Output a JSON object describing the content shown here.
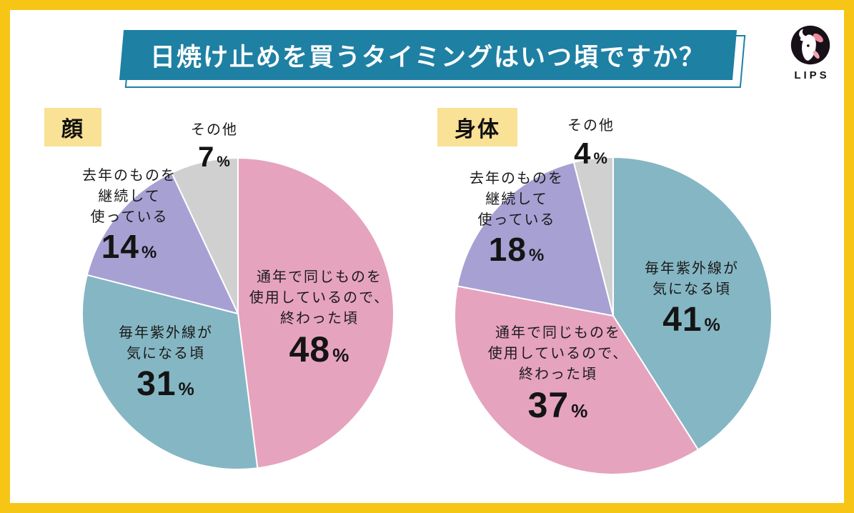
{
  "page": {
    "title": "日焼け止めを買うタイミングはいつ頃ですか？",
    "brand": {
      "logo_icon": "lips-deer-icon",
      "logo_text": "LIPS"
    }
  },
  "colors": {
    "frame_yellow": "#F7C516",
    "title_teal": "#1E80A3",
    "label_yellow_bg": "#F9E195",
    "slice_pink": "#E6A3BD",
    "slice_teal": "#85B6C3",
    "slice_purple": "#A7A0D3",
    "slice_gray": "#D1D0D1",
    "slice_border": "#FFFFFF",
    "text_black": "#141414",
    "title_text_white": "#FFFFFF"
  },
  "chart_data": [
    {
      "type": "pie",
      "title": "顔",
      "unit": "%",
      "start_angle_deg": 0,
      "direction": "clockwise",
      "legend": "none",
      "label_position": "on-slice",
      "slices": [
        {
          "label": "通年で同じものを使用しているので、終わった頃",
          "label_lines": [
            "通年で同じものを",
            "使用しているので、",
            "終わった頃"
          ],
          "value": 48,
          "color": "#E6A3BD"
        },
        {
          "label": "毎年紫外線が気になる頃",
          "label_lines": [
            "毎年紫外線が",
            "気になる頃"
          ],
          "value": 31,
          "color": "#85B6C3"
        },
        {
          "label": "去年のものを継続して使っている",
          "label_lines": [
            "去年のものを",
            "継続して",
            "使っている"
          ],
          "value": 14,
          "color": "#A7A0D3"
        },
        {
          "label": "その他",
          "label_lines": [
            "その他"
          ],
          "value": 7,
          "color": "#D1D0D1"
        }
      ]
    },
    {
      "type": "pie",
      "title": "身体",
      "unit": "%",
      "start_angle_deg": 0,
      "direction": "clockwise",
      "legend": "none",
      "label_position": "on-slice",
      "slices": [
        {
          "label": "毎年紫外線が気になる頃",
          "label_lines": [
            "毎年紫外線が",
            "気になる頃"
          ],
          "value": 41,
          "color": "#85B6C3"
        },
        {
          "label": "通年で同じものを使用しているので、終わった頃",
          "label_lines": [
            "通年で同じものを",
            "使用しているので、",
            "終わった頃"
          ],
          "value": 37,
          "color": "#E6A3BD"
        },
        {
          "label": "去年のものを継続して使っている",
          "label_lines": [
            "去年のものを",
            "継続して",
            "使っている"
          ],
          "value": 18,
          "color": "#A7A0D3"
        },
        {
          "label": "その他",
          "label_lines": [
            "その他"
          ],
          "value": 4,
          "color": "#D1D0D1"
        }
      ]
    }
  ]
}
